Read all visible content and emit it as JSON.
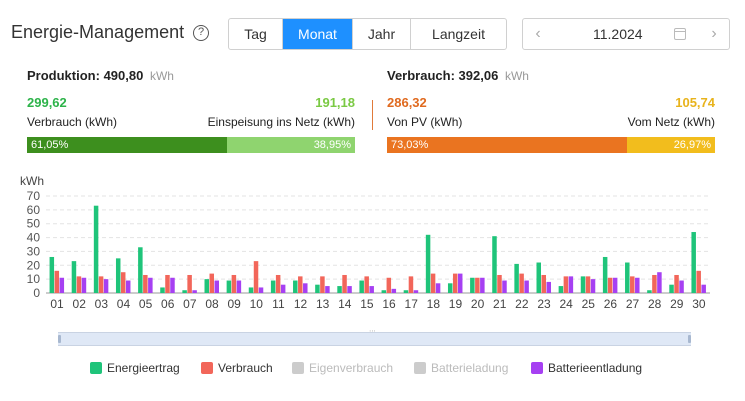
{
  "header": {
    "title": "Energie-Management",
    "help": "?",
    "tabs": [
      "Tag",
      "Monat",
      "Jahr",
      "Langzeit"
    ],
    "active_tab": "Monat",
    "date": "11.2024"
  },
  "production": {
    "label": "Produktion:",
    "value": "490,80",
    "unit": "kWh",
    "left_value": "299,62",
    "left_label": "Verbrauch (kWh)",
    "right_value": "191,18",
    "right_label": "Einspeisung ins Netz (kWh)",
    "left_pct": "61,05%",
    "right_pct": "38,95%",
    "left_share": 61.05,
    "colors": {
      "left": "#3d8f1e",
      "right": "#8fd46f",
      "left_num": "#2db34a",
      "right_num": "#7ac943"
    }
  },
  "consumption": {
    "label": "Verbrauch:",
    "value": "392,06",
    "unit": "kWh",
    "left_value": "286,32",
    "left_label": "Von PV (kWh)",
    "right_value": "105,74",
    "right_label": "Vom Netz (kWh)",
    "left_pct": "73,03%",
    "right_pct": "26,97%",
    "left_share": 73.03,
    "colors": {
      "left": "#ea7420",
      "right": "#f2bd1d",
      "left_num": "#e06a1f",
      "right_num": "#e8b31c"
    }
  },
  "legend": [
    {
      "label": "Energieertrag",
      "color": "#1fc47a",
      "active": true
    },
    {
      "label": "Verbrauch",
      "color": "#f2665a",
      "active": true
    },
    {
      "label": "Eigenverbrauch",
      "color": "#cccccc",
      "active": false
    },
    {
      "label": "Batterieladung",
      "color": "#cccccc",
      "active": false
    },
    {
      "label": "Batterieentladung",
      "color": "#a640f2",
      "active": true
    }
  ],
  "chart_data": {
    "type": "bar",
    "ylabel": "kWh",
    "ylim": [
      0,
      70
    ],
    "yticks": [
      0,
      10,
      20,
      30,
      40,
      50,
      60,
      70
    ],
    "grid": true,
    "legend_position": "bottom",
    "categories": [
      "01",
      "02",
      "03",
      "04",
      "05",
      "06",
      "07",
      "08",
      "09",
      "10",
      "11",
      "12",
      "13",
      "14",
      "15",
      "16",
      "17",
      "18",
      "19",
      "20",
      "21",
      "22",
      "23",
      "24",
      "25",
      "26",
      "27",
      "28",
      "29",
      "30"
    ],
    "series": [
      {
        "name": "Energieertrag",
        "color": "#1fc47a",
        "values": [
          26,
          23,
          63,
          25,
          33,
          4,
          2,
          10,
          9,
          4,
          9,
          9,
          6,
          5,
          9,
          2,
          2,
          42,
          7,
          11,
          41,
          21,
          22,
          5,
          12,
          26,
          22,
          2,
          6,
          44
        ]
      },
      {
        "name": "Verbrauch",
        "color": "#f2665a",
        "values": [
          16,
          12,
          12,
          15,
          13,
          13,
          13,
          14,
          13,
          23,
          13,
          12,
          12,
          13,
          12,
          11,
          12,
          14,
          14,
          11,
          13,
          14,
          13,
          12,
          12,
          11,
          12,
          13,
          13,
          16
        ]
      },
      {
        "name": "Batterieentladung",
        "color": "#a640f2",
        "values": [
          11,
          11,
          10,
          9,
          11,
          11,
          2,
          9,
          9,
          4,
          6,
          7,
          5,
          5,
          5,
          3,
          2,
          7,
          14,
          11,
          9,
          9,
          8,
          12,
          10,
          11,
          11,
          15,
          9,
          6
        ]
      }
    ]
  }
}
